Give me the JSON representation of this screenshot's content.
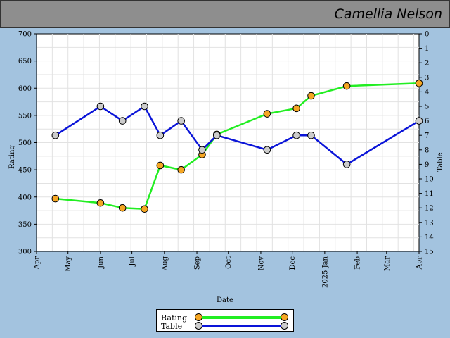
{
  "header": {
    "title": "Camellia Nelson"
  },
  "chart_data": {
    "type": "line",
    "xlabel": "Date",
    "ylabel": "Rating",
    "y2label": "Table",
    "ylim": [
      300,
      700
    ],
    "y2lim": [
      0,
      15
    ],
    "y2_inverted": true,
    "xlim": [
      "2024-04-01",
      "2025-04-01"
    ],
    "yticks": [
      300,
      350,
      400,
      450,
      500,
      550,
      600,
      650,
      700
    ],
    "y2ticks": [
      0,
      1,
      2,
      3,
      4,
      5,
      6,
      7,
      8,
      9,
      10,
      11,
      12,
      13,
      14,
      15
    ],
    "xticks": [
      {
        "date": "2024-04-01",
        "label": "Apr"
      },
      {
        "date": "2024-05-01",
        "label": "May"
      },
      {
        "date": "2024-06-01",
        "label": "Jun"
      },
      {
        "date": "2024-07-01",
        "label": "Jul"
      },
      {
        "date": "2024-08-01",
        "label": "Aug"
      },
      {
        "date": "2024-09-01",
        "label": "Sep"
      },
      {
        "date": "2024-10-01",
        "label": "Oct"
      },
      {
        "date": "2024-11-01",
        "label": "Nov"
      },
      {
        "date": "2024-12-01",
        "label": "Dec"
      },
      {
        "date": "2025-01-01",
        "label": "2025 Jan"
      },
      {
        "date": "2025-02-01",
        "label": "Feb"
      },
      {
        "date": "2025-03-01",
        "label": "Mar"
      },
      {
        "date": "2025-04-01",
        "label": "Apr"
      }
    ],
    "grid": true,
    "legend_position": "bottom-center",
    "series": [
      {
        "name": "Rating",
        "axis": "left",
        "color": "#22ee22",
        "marker_color": "#f5a623",
        "points": [
          {
            "x": "2024-04-19",
            "y": 397
          },
          {
            "x": "2024-06-01",
            "y": 389
          },
          {
            "x": "2024-06-22",
            "y": 380
          },
          {
            "x": "2024-07-13",
            "y": 378
          },
          {
            "x": "2024-07-28",
            "y": 458
          },
          {
            "x": "2024-08-17",
            "y": 450
          },
          {
            "x": "2024-09-06",
            "y": 478
          },
          {
            "x": "2024-09-20",
            "y": 515
          },
          {
            "x": "2024-11-07",
            "y": 553
          },
          {
            "x": "2024-12-05",
            "y": 563
          },
          {
            "x": "2024-12-19",
            "y": 586
          },
          {
            "x": "2025-01-22",
            "y": 604
          },
          {
            "x": "2025-04-01",
            "y": 609
          }
        ]
      },
      {
        "name": "Table",
        "axis": "right",
        "color": "#0a14d8",
        "marker_color": "#cccccc",
        "points": [
          {
            "x": "2024-04-19",
            "y": 7
          },
          {
            "x": "2024-06-01",
            "y": 5
          },
          {
            "x": "2024-06-22",
            "y": 6
          },
          {
            "x": "2024-07-13",
            "y": 5
          },
          {
            "x": "2024-07-28",
            "y": 7
          },
          {
            "x": "2024-08-17",
            "y": 6
          },
          {
            "x": "2024-09-06",
            "y": 8
          },
          {
            "x": "2024-09-20",
            "y": 7
          },
          {
            "x": "2024-11-07",
            "y": 8
          },
          {
            "x": "2024-12-05",
            "y": 7
          },
          {
            "x": "2024-12-19",
            "y": 7
          },
          {
            "x": "2025-01-22",
            "y": 9
          },
          {
            "x": "2025-04-01",
            "y": 6
          }
        ]
      }
    ]
  }
}
